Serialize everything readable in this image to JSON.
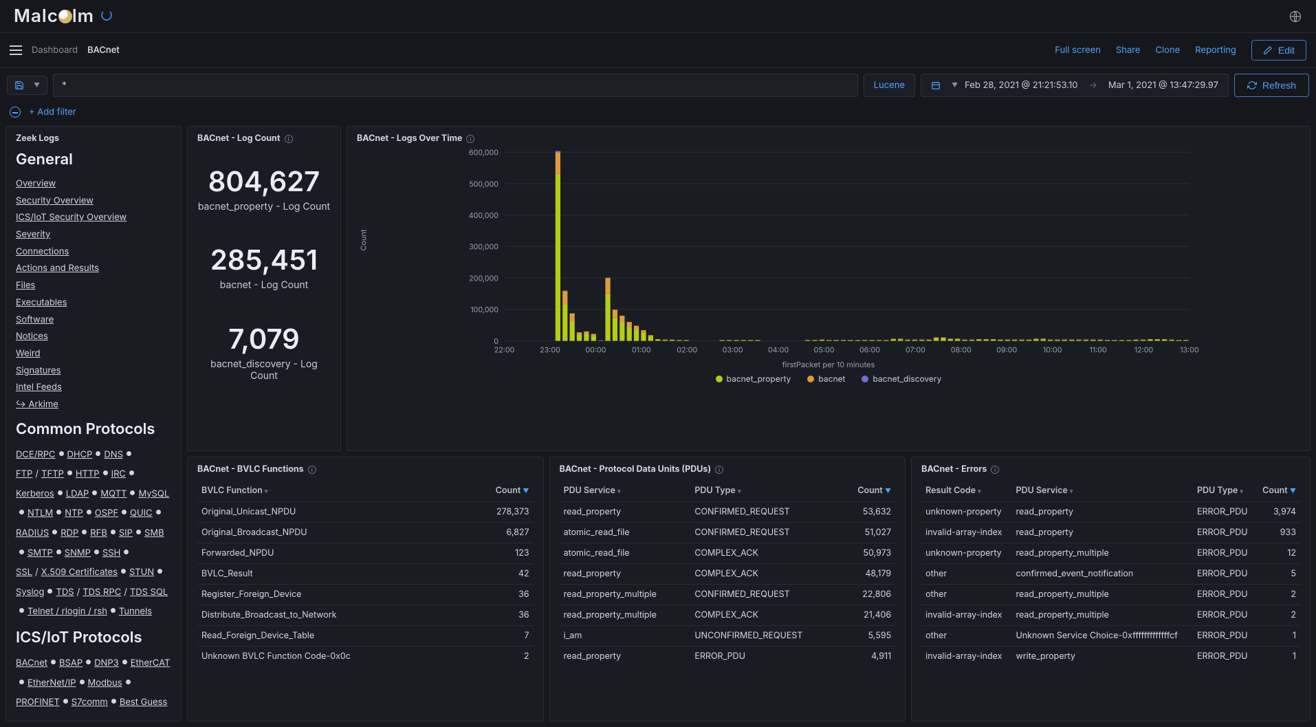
{
  "brand": "Malcolm",
  "breadcrumb": {
    "dashboard": "Dashboard",
    "page": "BACnet"
  },
  "actions": {
    "full_screen": "Full screen",
    "share": "Share",
    "clone": "Clone",
    "reporting": "Reporting",
    "edit": "Edit"
  },
  "query": {
    "text": "*",
    "language": "Lucene"
  },
  "time": {
    "from": "Feb 28, 2021 @ 21:21:53.10",
    "to": "Mar 1, 2021 @ 13:47:29.97"
  },
  "refresh_label": "Refresh",
  "add_filter": "+ Add filter",
  "zeek": {
    "title": "Zeek Logs",
    "general_heading": "General",
    "general_links": [
      "Overview",
      "Security Overview",
      "ICS/IoT Security Overview",
      "Severity",
      "Connections",
      "Actions and Results",
      "Files",
      "Executables",
      "Software",
      "Notices",
      "Weird",
      "Signatures",
      "Intel Feeds",
      "↪ Arkime"
    ],
    "common_heading": "Common Protocols",
    "common_protocols": [
      "DCE/RPC",
      "DHCP",
      "DNS",
      "FTP",
      "/",
      "TFTP",
      "HTTP",
      "IRC",
      "Kerberos",
      "LDAP",
      "MQTT",
      "MySQL",
      "NTLM",
      "NTP",
      "OSPF",
      "QUIC",
      "RADIUS",
      "RDP",
      "RFB",
      "SIP",
      "SMB",
      "SMTP",
      "SNMP",
      "SSH",
      "SSL",
      "/",
      "X.509 Certificates",
      "STUN",
      "Syslog",
      "TDS",
      "/",
      "TDS RPC",
      "/",
      "TDS SQL",
      "Telnet / rlogin / rsh",
      "Tunnels"
    ],
    "ics_heading": "ICS/IoT Protocols",
    "ics_protocols": [
      "BACnet",
      "BSAP",
      "DNP3",
      "EtherCAT",
      "EtherNet/IP",
      "Modbus",
      "PROFINET",
      "S7comm",
      "Best Guess"
    ]
  },
  "log_count": {
    "title": "BACnet - Log Count",
    "metrics": [
      {
        "value": "804,627",
        "label": "bacnet_property - Log Count"
      },
      {
        "value": "285,451",
        "label": "bacnet - Log Count"
      },
      {
        "value": "7,079",
        "label": "bacnet_discovery - Log Count"
      }
    ]
  },
  "logs_over_time": {
    "title": "BACnet - Logs Over Time",
    "y_label": "Count",
    "x_label": "firstPacket per 10 minutes",
    "y_ticks": [
      "0",
      "100,000",
      "200,000",
      "300,000",
      "400,000",
      "500,000",
      "600,000"
    ],
    "y_max": 600000,
    "x_ticks": [
      "22:00",
      "23:00",
      "00:00",
      "01:00",
      "02:00",
      "03:00",
      "04:00",
      "05:00",
      "06:00",
      "07:00",
      "08:00",
      "09:00",
      "10:00",
      "11:00",
      "12:00",
      "13:00"
    ],
    "legend": [
      {
        "label": "bacnet_property",
        "color": "#b5cc18"
      },
      {
        "label": "bacnet",
        "color": "#e09b3d"
      },
      {
        "label": "bacnet_discovery",
        "color": "#6f6fd8"
      }
    ],
    "bins": [
      {
        "x": 0,
        "p": 0,
        "b": 0,
        "d": 0
      },
      {
        "x": 1,
        "p": 0,
        "b": 0,
        "d": 0
      },
      {
        "x": 2,
        "p": 0,
        "b": 0,
        "d": 0
      },
      {
        "x": 3,
        "p": 0,
        "b": 0,
        "d": 0
      },
      {
        "x": 4,
        "p": 0,
        "b": 0,
        "d": 0
      },
      {
        "x": 5,
        "p": 0,
        "b": 0,
        "d": 0
      },
      {
        "x": 6,
        "p": 0,
        "b": 0,
        "d": 0
      },
      {
        "x": 7,
        "p": 530000,
        "b": 70000,
        "d": 4000
      },
      {
        "x": 8,
        "p": 116000,
        "b": 42000,
        "d": 2000
      },
      {
        "x": 9,
        "p": 62000,
        "b": 25000,
        "d": 1000
      },
      {
        "x": 10,
        "p": 20000,
        "b": 7000,
        "d": 0
      },
      {
        "x": 11,
        "p": 22000,
        "b": 8000,
        "d": 0
      },
      {
        "x": 12,
        "p": 16000,
        "b": 6000,
        "d": 0
      },
      {
        "x": 13,
        "p": 1000,
        "b": 500,
        "d": 0
      },
      {
        "x": 14,
        "p": 148000,
        "b": 52000,
        "d": 1000
      },
      {
        "x": 15,
        "p": 72000,
        "b": 27000,
        "d": 0
      },
      {
        "x": 16,
        "p": 58000,
        "b": 22000,
        "d": 0
      },
      {
        "x": 17,
        "p": 44000,
        "b": 16000,
        "d": 0
      },
      {
        "x": 18,
        "p": 35000,
        "b": 13000,
        "d": 0
      },
      {
        "x": 19,
        "p": 26000,
        "b": 8000,
        "d": 0
      },
      {
        "x": 20,
        "p": 14000,
        "b": 4000,
        "d": 0
      },
      {
        "x": 21,
        "p": 4000,
        "b": 1500,
        "d": 0
      },
      {
        "x": 22,
        "p": 3000,
        "b": 1000,
        "d": 0
      },
      {
        "x": 23,
        "p": 3000,
        "b": 1000,
        "d": 0
      },
      {
        "x": 24,
        "p": 2000,
        "b": 800,
        "d": 0
      },
      {
        "x": 25,
        "p": 2000,
        "b": 800,
        "d": 0
      },
      {
        "x": 26,
        "p": 0,
        "b": 0,
        "d": 0
      },
      {
        "x": 27,
        "p": 0,
        "b": 0,
        "d": 0
      },
      {
        "x": 28,
        "p": 0,
        "b": 0,
        "d": 0
      },
      {
        "x": 29,
        "p": 0,
        "b": 0,
        "d": 0
      },
      {
        "x": 30,
        "p": 2000,
        "b": 800,
        "d": 0
      },
      {
        "x": 31,
        "p": 2000,
        "b": 800,
        "d": 0
      },
      {
        "x": 32,
        "p": 2000,
        "b": 800,
        "d": 0
      },
      {
        "x": 33,
        "p": 2000,
        "b": 800,
        "d": 0
      },
      {
        "x": 34,
        "p": 2000,
        "b": 800,
        "d": 0
      },
      {
        "x": 35,
        "p": 2000,
        "b": 800,
        "d": 0
      },
      {
        "x": 36,
        "p": 0,
        "b": 0,
        "d": 0
      },
      {
        "x": 37,
        "p": 0,
        "b": 0,
        "d": 0
      },
      {
        "x": 38,
        "p": 0,
        "b": 0,
        "d": 0
      },
      {
        "x": 39,
        "p": 0,
        "b": 0,
        "d": 0
      },
      {
        "x": 40,
        "p": 0,
        "b": 0,
        "d": 0
      },
      {
        "x": 41,
        "p": 0,
        "b": 0,
        "d": 0
      },
      {
        "x": 42,
        "p": 2000,
        "b": 800,
        "d": 0
      },
      {
        "x": 43,
        "p": 2000,
        "b": 800,
        "d": 0
      },
      {
        "x": 44,
        "p": 3000,
        "b": 1000,
        "d": 0
      },
      {
        "x": 45,
        "p": 2000,
        "b": 800,
        "d": 0
      },
      {
        "x": 46,
        "p": 2000,
        "b": 800,
        "d": 0
      },
      {
        "x": 47,
        "p": 2000,
        "b": 800,
        "d": 0
      },
      {
        "x": 48,
        "p": 2000,
        "b": 800,
        "d": 0
      },
      {
        "x": 49,
        "p": 2000,
        "b": 800,
        "d": 0
      },
      {
        "x": 50,
        "p": 2000,
        "b": 800,
        "d": 0
      },
      {
        "x": 51,
        "p": 2000,
        "b": 800,
        "d": 0
      },
      {
        "x": 52,
        "p": 2000,
        "b": 800,
        "d": 0
      },
      {
        "x": 53,
        "p": 2000,
        "b": 800,
        "d": 0
      },
      {
        "x": 54,
        "p": 5000,
        "b": 1800,
        "d": 0
      },
      {
        "x": 55,
        "p": 5000,
        "b": 1800,
        "d": 0
      },
      {
        "x": 56,
        "p": 3000,
        "b": 1000,
        "d": 0
      },
      {
        "x": 57,
        "p": 3000,
        "b": 1000,
        "d": 0
      },
      {
        "x": 58,
        "p": 3000,
        "b": 1000,
        "d": 0
      },
      {
        "x": 59,
        "p": 3000,
        "b": 1000,
        "d": 0
      },
      {
        "x": 60,
        "p": 8000,
        "b": 3000,
        "d": 0
      },
      {
        "x": 61,
        "p": 8000,
        "b": 3000,
        "d": 0
      },
      {
        "x": 62,
        "p": 5000,
        "b": 2000,
        "d": 0
      },
      {
        "x": 63,
        "p": 5000,
        "b": 2000,
        "d": 0
      },
      {
        "x": 64,
        "p": 3000,
        "b": 1000,
        "d": 0
      },
      {
        "x": 65,
        "p": 3000,
        "b": 1000,
        "d": 0
      },
      {
        "x": 66,
        "p": 4000,
        "b": 1500,
        "d": 0
      },
      {
        "x": 67,
        "p": 4000,
        "b": 1500,
        "d": 0
      },
      {
        "x": 68,
        "p": 4000,
        "b": 1500,
        "d": 0
      },
      {
        "x": 69,
        "p": 3000,
        "b": 1000,
        "d": 0
      },
      {
        "x": 70,
        "p": 3000,
        "b": 1000,
        "d": 0
      },
      {
        "x": 71,
        "p": 3000,
        "b": 1000,
        "d": 0
      },
      {
        "x": 72,
        "p": 3000,
        "b": 1000,
        "d": 0
      },
      {
        "x": 73,
        "p": 3000,
        "b": 1000,
        "d": 0
      },
      {
        "x": 74,
        "p": 5000,
        "b": 2000,
        "d": 0
      },
      {
        "x": 75,
        "p": 5000,
        "b": 2000,
        "d": 0
      },
      {
        "x": 76,
        "p": 3000,
        "b": 1000,
        "d": 0
      },
      {
        "x": 77,
        "p": 3000,
        "b": 1000,
        "d": 0
      },
      {
        "x": 78,
        "p": 3000,
        "b": 1000,
        "d": 0
      },
      {
        "x": 79,
        "p": 3000,
        "b": 1000,
        "d": 0
      },
      {
        "x": 80,
        "p": 3000,
        "b": 1000,
        "d": 0
      },
      {
        "x": 81,
        "p": 3000,
        "b": 1000,
        "d": 0
      },
      {
        "x": 82,
        "p": 3000,
        "b": 1000,
        "d": 0
      },
      {
        "x": 83,
        "p": 3000,
        "b": 1000,
        "d": 0
      },
      {
        "x": 84,
        "p": 2000,
        "b": 800,
        "d": 0
      },
      {
        "x": 85,
        "p": 2000,
        "b": 800,
        "d": 0
      },
      {
        "x": 86,
        "p": 2000,
        "b": 800,
        "d": 0
      },
      {
        "x": 87,
        "p": 2000,
        "b": 800,
        "d": 0
      },
      {
        "x": 88,
        "p": 3000,
        "b": 1000,
        "d": 0
      },
      {
        "x": 89,
        "p": 3000,
        "b": 1000,
        "d": 0
      },
      {
        "x": 90,
        "p": 4000,
        "b": 1500,
        "d": 0
      },
      {
        "x": 91,
        "p": 4000,
        "b": 1500,
        "d": 0
      },
      {
        "x": 92,
        "p": 4000,
        "b": 1500,
        "d": 0
      },
      {
        "x": 93,
        "p": 3000,
        "b": 1000,
        "d": 0
      },
      {
        "x": 94,
        "p": 2000,
        "b": 800,
        "d": 0
      },
      {
        "x": 95,
        "p": 2000,
        "b": 800,
        "d": 0
      }
    ],
    "colors": {
      "bg": "#1a1c23",
      "grid": "#2a2c34",
      "axis_text": "#9aa0af"
    },
    "bar_width_ratio": 0.7
  },
  "bvlc": {
    "title": "BACnet - BVLC Functions",
    "columns": [
      "BVLC Function",
      "Count"
    ],
    "rows": [
      [
        "Original_Unicast_NPDU",
        "278,373"
      ],
      [
        "Original_Broadcast_NPDU",
        "6,827"
      ],
      [
        "Forwarded_NPDU",
        "123"
      ],
      [
        "BVLC_Result",
        "42"
      ],
      [
        "Register_Foreign_Device",
        "36"
      ],
      [
        "Distribute_Broadcast_to_Network",
        "36"
      ],
      [
        "Read_Foreign_Device_Table",
        "7"
      ],
      [
        "Unknown BVLC Function Code-0x0c",
        "2"
      ]
    ]
  },
  "pdus": {
    "title": "BACnet - Protocol Data Units (PDUs)",
    "columns": [
      "PDU Service",
      "PDU Type",
      "Count"
    ],
    "rows": [
      [
        "read_property",
        "CONFIRMED_REQUEST",
        "53,632"
      ],
      [
        "atomic_read_file",
        "CONFIRMED_REQUEST",
        "51,027"
      ],
      [
        "atomic_read_file",
        "COMPLEX_ACK",
        "50,973"
      ],
      [
        "read_property",
        "COMPLEX_ACK",
        "48,179"
      ],
      [
        "read_property_multiple",
        "CONFIRMED_REQUEST",
        "22,806"
      ],
      [
        "read_property_multiple",
        "COMPLEX_ACK",
        "21,406"
      ],
      [
        "i_am",
        "UNCONFIRMED_REQUEST",
        "5,595"
      ],
      [
        "read_property",
        "ERROR_PDU",
        "4,911"
      ]
    ]
  },
  "errors": {
    "title": "BACnet - Errors",
    "columns": [
      "Result Code",
      "PDU Service",
      "PDU Type",
      "Count"
    ],
    "rows": [
      [
        "unknown-property",
        "read_property",
        "ERROR_PDU",
        "3,974"
      ],
      [
        "invalid-array-index",
        "read_property",
        "ERROR_PDU",
        "933"
      ],
      [
        "unknown-property",
        "read_property_multiple",
        "ERROR_PDU",
        "12"
      ],
      [
        "other",
        "confirmed_event_notification",
        "ERROR_PDU",
        "5"
      ],
      [
        "other",
        "read_property_multiple",
        "ERROR_PDU",
        "2"
      ],
      [
        "invalid-array-index",
        "read_property_multiple",
        "ERROR_PDU",
        "2"
      ],
      [
        "other",
        "Unknown Service Choice-0xfffffffffffffcf",
        "ERROR_PDU",
        "1"
      ],
      [
        "invalid-array-index",
        "write_property",
        "ERROR_PDU",
        "1"
      ]
    ]
  }
}
